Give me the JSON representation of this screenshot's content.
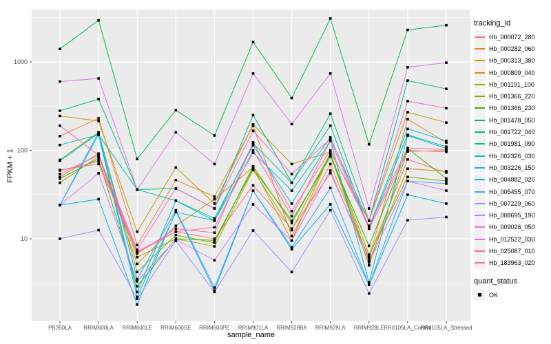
{
  "chart_data": {
    "type": "line",
    "title": "",
    "xlabel": "sample_name",
    "ylabel": "FPKM + 1",
    "y_scale": "log10",
    "ylim": [
      1.16,
      3900
    ],
    "grid": "white-on-gray",
    "panel_background": "#EBEBEB",
    "gridline_color": "#FFFFFF",
    "tick_label_color": "#4D4D4D",
    "point_color": "#000000",
    "x_categories": [
      "PB350LA",
      "RRIM600LA",
      "RRIM600LE",
      "RRIM600SE",
      "RRIM600PE",
      "RRIM901LA",
      "RRIM928BA",
      "RRIM928LA",
      "RRIM928LE",
      "RRII105LA_Control",
      "RRII105LA_Stressed"
    ],
    "y_ticks": [
      {
        "label": "10",
        "value": 10
      },
      {
        "label": "100",
        "value": 100
      },
      {
        "label": "1000",
        "value": 1000
      }
    ],
    "y_minor_gridlines": [
      3.162,
      31.623,
      316.228,
      3162.278
    ],
    "legend": {
      "title": "tracking_id",
      "position": "right"
    },
    "quant_status_legend": {
      "title": "quant_status",
      "items": [
        {
          "label": "OK",
          "marker": "black-square"
        }
      ]
    },
    "series": [
      {
        "name": "Hb_000072_280",
        "color": "#F8766D",
        "values": [
          59,
          75,
          7.2,
          12,
          10,
          40,
          13,
          55,
          6.2,
          79,
          56
        ]
      },
      {
        "name": "Hb_000282_060",
        "color": "#EA8331",
        "values": [
          145,
          230,
          8.5,
          46,
          30,
          190,
          10.7,
          70,
          6,
          225,
          122
        ]
      },
      {
        "name": "Hb_000313_380",
        "color": "#D89000",
        "values": [
          50,
          92,
          5.2,
          14,
          28,
          64,
          9.5,
          93,
          5.6,
          62,
          58
        ]
      },
      {
        "name": "Hb_000809_040",
        "color": "#C09B00",
        "values": [
          245,
          215,
          12,
          64,
          25,
          196,
          70,
          96,
          16,
          270,
          206
        ]
      },
      {
        "name": "Hb_001191_100",
        "color": "#A3A500",
        "values": [
          43,
          85,
          6.2,
          10,
          8.2,
          60,
          12.5,
          90,
          5,
          100,
          96
        ]
      },
      {
        "name": "Hb_001366_220",
        "color": "#7CAE00",
        "values": [
          78,
          160,
          4.2,
          11,
          9,
          66,
          15,
          92,
          6.6,
          50,
          45
        ]
      },
      {
        "name": "Hb_001366_230",
        "color": "#39B600",
        "values": [
          48,
          80,
          2.9,
          10,
          9.6,
          62,
          16,
          85,
          8.3,
          105,
          48
        ]
      },
      {
        "name": "Hb_001478_050",
        "color": "#00BB4E",
        "values": [
          1400,
          2950,
          80,
          285,
          147,
          1680,
          390,
          3100,
          117,
          2300,
          2600
        ]
      },
      {
        "name": "Hb_001722_040",
        "color": "#00BF7D",
        "values": [
          280,
          380,
          36,
          37,
          22,
          250,
          43,
          260,
          16,
          615,
          495
        ]
      },
      {
        "name": "Hb_001981_090",
        "color": "#00C1A3",
        "values": [
          115,
          150,
          36,
          27,
          16,
          120,
          43,
          190,
          13,
          150,
          110
        ]
      },
      {
        "name": "Hb_002326_030",
        "color": "#00BFC4",
        "values": [
          76,
          155,
          2.5,
          27,
          17,
          114,
          25,
          130,
          3.2,
          147,
          105
        ]
      },
      {
        "name": "Hb_003226_150",
        "color": "#00BAE0",
        "values": [
          24,
          150,
          2.2,
          20,
          16,
          94,
          35,
          140,
          13.5,
          175,
          128
        ]
      },
      {
        "name": "Hb_004882_020",
        "color": "#00B0F6",
        "values": [
          24,
          28,
          1.8,
          20.5,
          2.6,
          35,
          7.6,
          24.5,
          3,
          31.5,
          25
        ]
      },
      {
        "name": "Hb_005455_070",
        "color": "#35A2FF",
        "values": [
          24,
          160,
          3.5,
          21,
          2.8,
          35,
          8,
          37.5,
          3,
          45,
          42
        ]
      },
      {
        "name": "Hb_007229_060",
        "color": "#9590FF",
        "values": [
          10,
          12.5,
          2.1,
          9.5,
          2.5,
          12.4,
          4.2,
          21,
          2.4,
          16.2,
          17.6
        ]
      },
      {
        "name": "Hb_008695_190",
        "color": "#C77CFF",
        "values": [
          24,
          55,
          3.3,
          9.8,
          5.7,
          24.5,
          9.5,
          59,
          5.4,
          45,
          35
        ]
      },
      {
        "name": "Hb_009026_050",
        "color": "#E76BF3",
        "values": [
          600,
          650,
          36,
          160,
          70,
          740,
          198,
          740,
          22,
          870,
          980
        ]
      },
      {
        "name": "Hb_012522_030",
        "color": "#FA62DB",
        "values": [
          54,
          88,
          7.5,
          37,
          22,
          166,
          54,
          135,
          16,
          360,
          300
        ]
      },
      {
        "name": "Hb_025087_010",
        "color": "#FF62BC",
        "values": [
          190,
          88,
          6.8,
          13,
          11.7,
          123,
          20.5,
          100,
          14,
          106,
          102
        ]
      },
      {
        "name": "Hb_183963_020",
        "color": "#FF6A98",
        "values": [
          60,
          70,
          7,
          12,
          13.5,
          100,
          18,
          128,
          13,
          97,
          100
        ]
      }
    ]
  }
}
